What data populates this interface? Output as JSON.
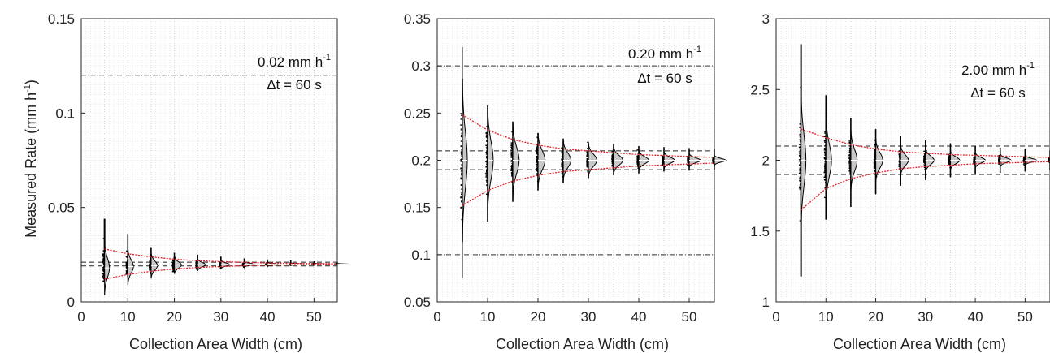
{
  "chart_data": [
    {
      "type": "scatter",
      "title": "",
      "xlabel": "Collection Area Width (cm)",
      "ylabel": "Measured Rate (mm h",
      "ylabel_sup": "-1",
      "ylabel_end": ")",
      "xlim": [
        0,
        55
      ],
      "ylim": [
        0,
        0.15
      ],
      "xticks": [
        0,
        10,
        20,
        30,
        40,
        50
      ],
      "xticklabels": [
        "0",
        "10",
        "20",
        "30",
        "40",
        "50"
      ],
      "yticks": [
        0,
        0.05,
        0.1,
        0.15
      ],
      "yticklabels": [
        "0",
        "0.05",
        "0.1",
        "0.15"
      ],
      "annotation_rate": "0.02 mm h",
      "annotation_rate_sup": "-1",
      "annotation_dt": "Δt = 60 s",
      "true_rate": 0.02,
      "tolerance_lines": [
        0.019,
        0.021
      ],
      "reference_lines": [
        0.12
      ],
      "x": [
        5,
        10,
        15,
        20,
        25,
        30,
        35,
        40,
        45,
        50,
        55
      ],
      "series": [
        {
          "name": "",
          "values": [
            0.018,
            0.0187,
            0.0192,
            0.0195,
            0.0197,
            0.0198,
            0.0199,
            0.0199,
            0.02,
            0.02,
            0.02
          ]
        },
        {
          "name": "",
          "values": [
            0.044,
            0.036,
            0.029,
            0.026,
            0.025,
            0.024,
            0.023,
            0.0225,
            0.022,
            0.0215,
            0.021
          ]
        },
        {
          "name": "",
          "values": [
            0.011,
            0.013,
            0.015,
            0.016,
            0.017,
            0.0175,
            0.018,
            0.0185,
            0.019,
            0.0192,
            0.0195
          ]
        },
        {
          "name": "",
          "values": [
            0.028,
            0.0255,
            0.0238,
            0.0226,
            0.0218,
            0.0213,
            0.0209,
            0.0206,
            0.0204,
            0.0203,
            0.0202
          ]
        },
        {
          "name": "",
          "values": [
            0.012,
            0.0145,
            0.0162,
            0.0174,
            0.0182,
            0.0187,
            0.0191,
            0.0194,
            0.0196,
            0.0197,
            0.0198
          ]
        }
      ]
    },
    {
      "type": "scatter",
      "title": "",
      "xlabel": "Collection Area Width (cm)",
      "xlim": [
        0,
        55
      ],
      "ylim": [
        0.05,
        0.35
      ],
      "xticks": [
        0,
        10,
        20,
        30,
        40,
        50
      ],
      "xticklabels": [
        "0",
        "10",
        "20",
        "30",
        "40",
        "50"
      ],
      "yticks": [
        0.05,
        0.1,
        0.15,
        0.2,
        0.25,
        0.3,
        0.35
      ],
      "yticklabels": [
        "0.05",
        "0.1",
        "0.15",
        "0.2",
        "0.25",
        "0.3",
        "0.35"
      ],
      "annotation_rate": "0.20 mm h",
      "annotation_rate_sup": "-1",
      "annotation_dt": "Δt = 60 s",
      "true_rate": 0.2,
      "tolerance_lines": [
        0.19,
        0.21
      ],
      "reference_lines": [
        0.3,
        0.1
      ],
      "x": [
        5,
        10,
        15,
        20,
        25,
        30,
        35,
        40,
        45,
        50,
        55
      ],
      "series": [
        {
          "name": "",
          "values": [
            0.2,
            0.2,
            0.2,
            0.2,
            0.2,
            0.2,
            0.2,
            0.2,
            0.2,
            0.2,
            0.2
          ]
        },
        {
          "name": "",
          "values": [
            0.32,
            0.258,
            0.241,
            0.229,
            0.223,
            0.219,
            0.217,
            0.215,
            0.214,
            0.213,
            0.212
          ]
        },
        {
          "name": "",
          "values": [
            0.075,
            0.135,
            0.156,
            0.168,
            0.176,
            0.181,
            0.184,
            0.186,
            0.188,
            0.189,
            0.19
          ]
        },
        {
          "name": "",
          "values": [
            0.248,
            0.232,
            0.222,
            0.216,
            0.212,
            0.21,
            0.208,
            0.206,
            0.205,
            0.204,
            0.203
          ]
        },
        {
          "name": "",
          "values": [
            0.152,
            0.168,
            0.178,
            0.184,
            0.188,
            0.19,
            0.192,
            0.194,
            0.195,
            0.196,
            0.197
          ]
        }
      ]
    },
    {
      "type": "scatter",
      "title": "",
      "xlabel": "Collection Area Width (cm)",
      "xlim": [
        0,
        55
      ],
      "ylim": [
        1,
        3
      ],
      "xticks": [
        0,
        10,
        20,
        30,
        40,
        50
      ],
      "xticklabels": [
        "0",
        "10",
        "20",
        "30",
        "40",
        "50"
      ],
      "yticks": [
        1,
        1.5,
        2,
        2.5,
        3
      ],
      "yticklabels": [
        "1",
        "1.5",
        "2",
        "2.5",
        "3"
      ],
      "annotation_rate": "2.00 mm h",
      "annotation_rate_sup": "-1",
      "annotation_dt": "Δt = 60 s",
      "true_rate": 2.0,
      "tolerance_lines": [
        1.9,
        2.1
      ],
      "reference_lines": [],
      "x": [
        5,
        10,
        15,
        20,
        25,
        30,
        35,
        40,
        45,
        50,
        55
      ],
      "series": [
        {
          "name": "",
          "values": [
            2.0,
            2.0,
            2.0,
            2.0,
            2.0,
            2.0,
            2.0,
            2.0,
            2.0,
            2.0,
            2.0
          ]
        },
        {
          "name": "",
          "values": [
            2.82,
            2.46,
            2.3,
            2.22,
            2.17,
            2.14,
            2.12,
            2.1,
            2.09,
            2.08,
            2.07
          ]
        },
        {
          "name": "",
          "values": [
            1.18,
            1.58,
            1.67,
            1.76,
            1.82,
            1.86,
            1.88,
            1.9,
            1.91,
            1.92,
            1.93
          ]
        },
        {
          "name": "",
          "values": [
            2.22,
            2.16,
            2.11,
            2.08,
            2.06,
            2.05,
            2.04,
            2.035,
            2.03,
            2.025,
            2.02
          ]
        },
        {
          "name": "",
          "values": [
            1.65,
            1.8,
            1.87,
            1.91,
            1.94,
            1.955,
            1.965,
            1.975,
            1.98,
            1.985,
            1.99
          ]
        }
      ]
    }
  ]
}
